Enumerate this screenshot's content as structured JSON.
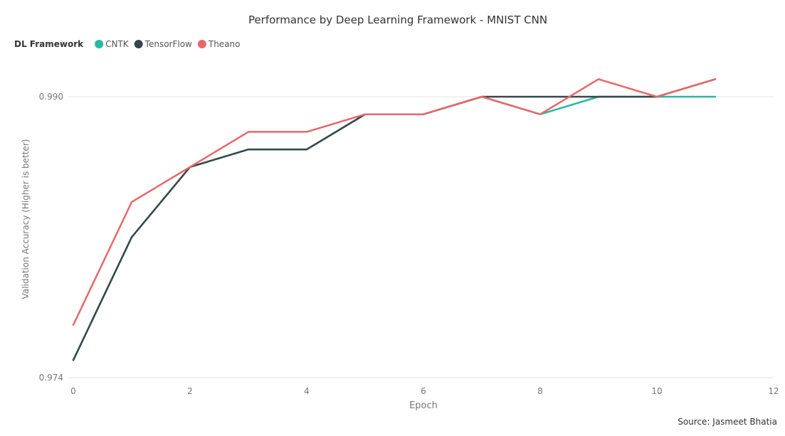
{
  "chart_data": {
    "type": "line",
    "title": "Performance by Deep Learning Framework - MNIST CNN",
    "xlabel": "Epoch",
    "ylabel": "Validation Accuracy (Higher is better)",
    "xlim": [
      0,
      12
    ],
    "ylim": [
      0.974,
      0.99
    ],
    "xticks": [
      0,
      2,
      4,
      6,
      8,
      10,
      12
    ],
    "yticks": [
      0.974,
      0.99
    ],
    "ytick_labels": [
      "0.974",
      "0.990"
    ],
    "grid": "horizontal",
    "legend_title": "DL Framework",
    "legend_position": "top-left",
    "source": "Source: Jasmeet Bhatia",
    "x": [
      0,
      1,
      2,
      3,
      4,
      5,
      6,
      7,
      8,
      9,
      10,
      11
    ],
    "series": [
      {
        "name": "CNTK",
        "color": "#2ab7a3",
        "values": [
          0.975,
          0.982,
          0.986,
          0.987,
          0.987,
          0.989,
          0.989,
          0.99,
          0.989,
          0.99,
          0.99,
          0.99
        ]
      },
      {
        "name": "TensorFlow",
        "color": "#374649",
        "values": [
          0.975,
          0.982,
          0.986,
          0.987,
          0.987,
          0.989,
          0.989,
          0.99,
          0.99,
          0.99,
          0.99,
          0.991
        ]
      },
      {
        "name": "Theano",
        "color": "#e8676a",
        "values": [
          0.977,
          0.984,
          0.986,
          0.988,
          0.988,
          0.989,
          0.989,
          0.99,
          0.989,
          0.991,
          0.99,
          0.991
        ]
      }
    ]
  }
}
